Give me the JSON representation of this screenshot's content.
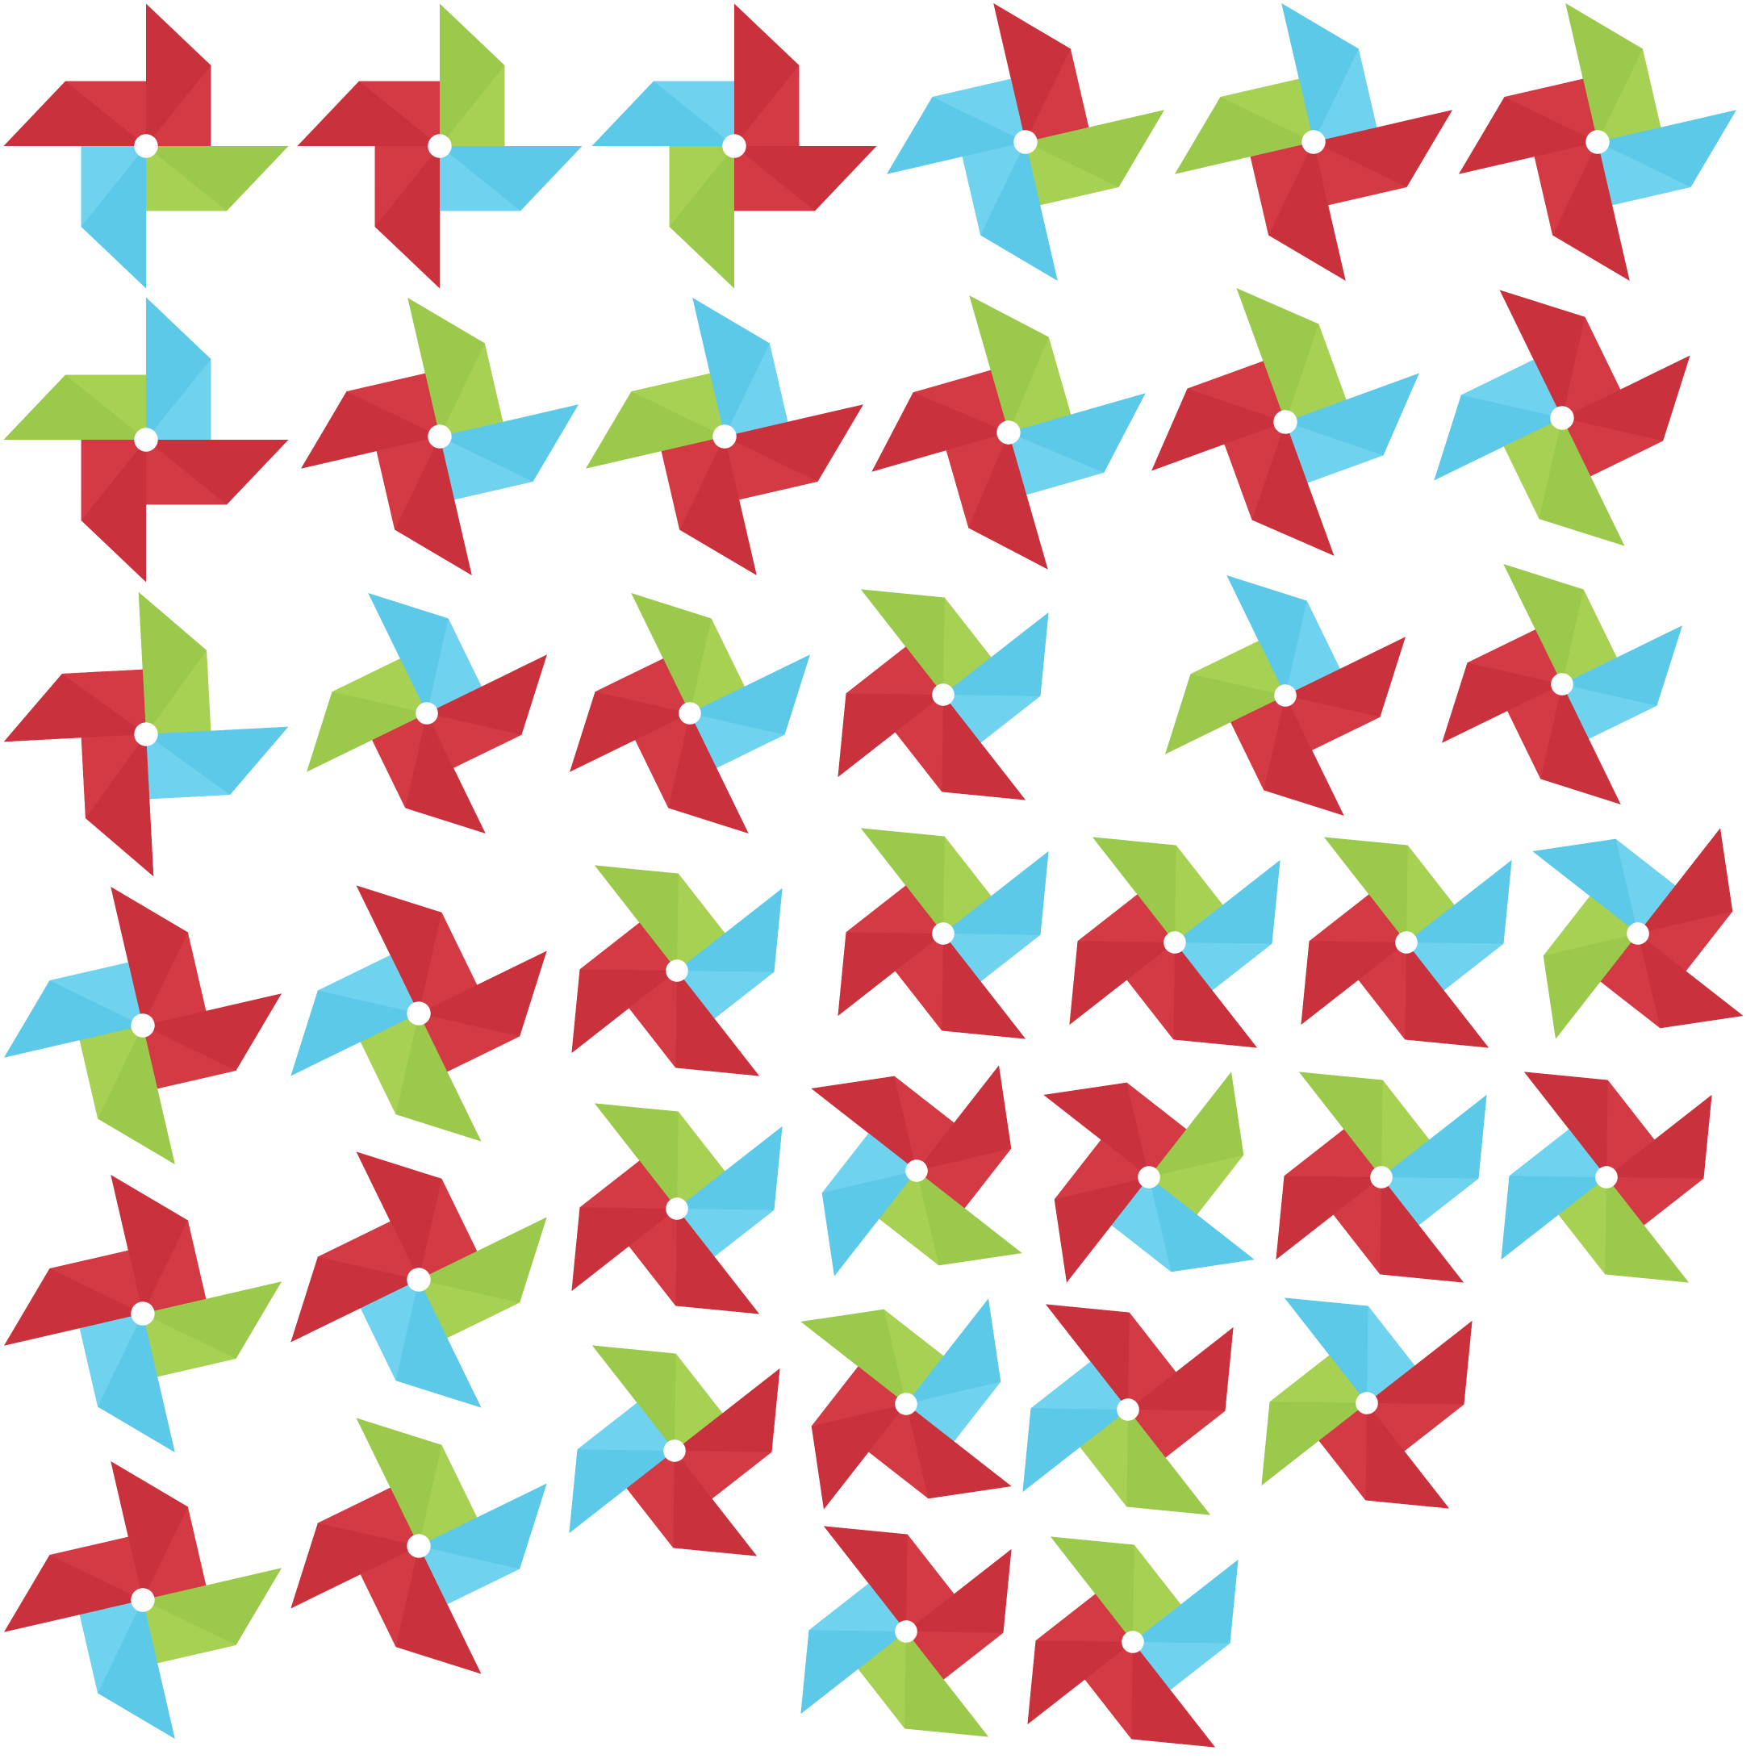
{
  "image": {
    "kind": "pinwheel pattern illustration",
    "background": "#ffffff",
    "hub_color": "#ffffff"
  },
  "palette": {
    "red": {
      "base": "#c9323d",
      "shade": "#b82a36",
      "light": "#d33a44"
    },
    "green": {
      "base": "#9bc94b",
      "shade": "#8db94a",
      "light": "#a6d153"
    },
    "blue": {
      "base": "#5cc9e8",
      "shade": "#45b9e0",
      "light": "#6fd2ee"
    }
  },
  "pinwheels": [
    {
      "blades": [
        "red",
        "green",
        "blue",
        "red"
      ]
    },
    {
      "blades": [
        "green",
        "blue",
        "red",
        "red"
      ]
    },
    {
      "blades": [
        "red",
        "red",
        "green",
        "blue"
      ]
    },
    {
      "blades": [
        "red",
        "green",
        "blue",
        "blue"
      ]
    },
    {
      "blades": [
        "blue",
        "red",
        "red",
        "green"
      ]
    },
    {
      "blades": [
        "green",
        "blue",
        "red",
        "red"
      ]
    },
    {
      "blades": [
        "blue",
        "red",
        "red",
        "green"
      ]
    },
    {
      "blades": [
        "green",
        "blue",
        "red",
        "red"
      ]
    },
    {
      "blades": [
        "blue",
        "red",
        "red",
        "green"
      ]
    },
    {
      "blades": [
        "green",
        "blue",
        "red",
        "red"
      ]
    },
    {
      "blades": [
        "green",
        "blue",
        "red",
        "red"
      ]
    },
    {
      "blades": [
        "red",
        "red",
        "green",
        "blue"
      ]
    },
    {
      "blades": [
        "green",
        "blue",
        "red",
        "red"
      ]
    },
    {
      "blades": [
        "blue",
        "red",
        "red",
        "green"
      ]
    },
    {
      "blades": [
        "green",
        "blue",
        "red",
        "red"
      ]
    },
    {
      "blades": [
        "green",
        "blue",
        "red",
        "red"
      ]
    },
    {
      "blades": [
        "blue",
        "red",
        "red",
        "green"
      ]
    },
    {
      "blades": [
        "green",
        "blue",
        "red",
        "red"
      ]
    },
    {
      "blades": [
        "red",
        "red",
        "green",
        "blue"
      ]
    },
    {
      "blades": [
        "red",
        "red",
        "green",
        "blue"
      ]
    },
    {
      "blades": [
        "green",
        "blue",
        "red",
        "red"
      ]
    },
    {
      "blades": [
        "green",
        "blue",
        "red",
        "red"
      ]
    },
    {
      "blades": [
        "green",
        "blue",
        "red",
        "red"
      ]
    },
    {
      "blades": [
        "green",
        "blue",
        "red",
        "red"
      ]
    },
    {
      "blades": [
        "blue",
        "red",
        "red",
        "green"
      ]
    },
    {
      "blades": [
        "red",
        "green",
        "blue",
        "red"
      ]
    },
    {
      "blades": [
        "red",
        "green",
        "blue",
        "red"
      ]
    },
    {
      "blades": [
        "green",
        "blue",
        "red",
        "red"
      ]
    },
    {
      "blades": [
        "red",
        "red",
        "green",
        "blue"
      ]
    },
    {
      "blades": [
        "red",
        "green",
        "blue",
        "red"
      ]
    },
    {
      "blades": [
        "green",
        "blue",
        "red",
        "red"
      ]
    },
    {
      "blades": [
        "red",
        "red",
        "green",
        "blue"
      ]
    },
    {
      "blades": [
        "red",
        "green",
        "blue",
        "red"
      ]
    },
    {
      "blades": [
        "green",
        "blue",
        "red",
        "red"
      ]
    },
    {
      "blades": [
        "green",
        "red",
        "red",
        "blue"
      ]
    },
    {
      "blades": [
        "green",
        "blue",
        "red",
        "red"
      ]
    },
    {
      "blades": [
        "red",
        "red",
        "green",
        "blue"
      ]
    },
    {
      "blades": [
        "blue",
        "red",
        "red",
        "green"
      ]
    },
    {
      "blades": [
        "red",
        "red",
        "green",
        "blue"
      ]
    },
    {
      "blades": [
        "green",
        "blue",
        "red",
        "red"
      ]
    },
    {
      "blades": [
        "blue",
        "red",
        "red",
        "green"
      ]
    },
    {
      "blades": [
        "green",
        "blue",
        "red",
        "red"
      ]
    }
  ]
}
